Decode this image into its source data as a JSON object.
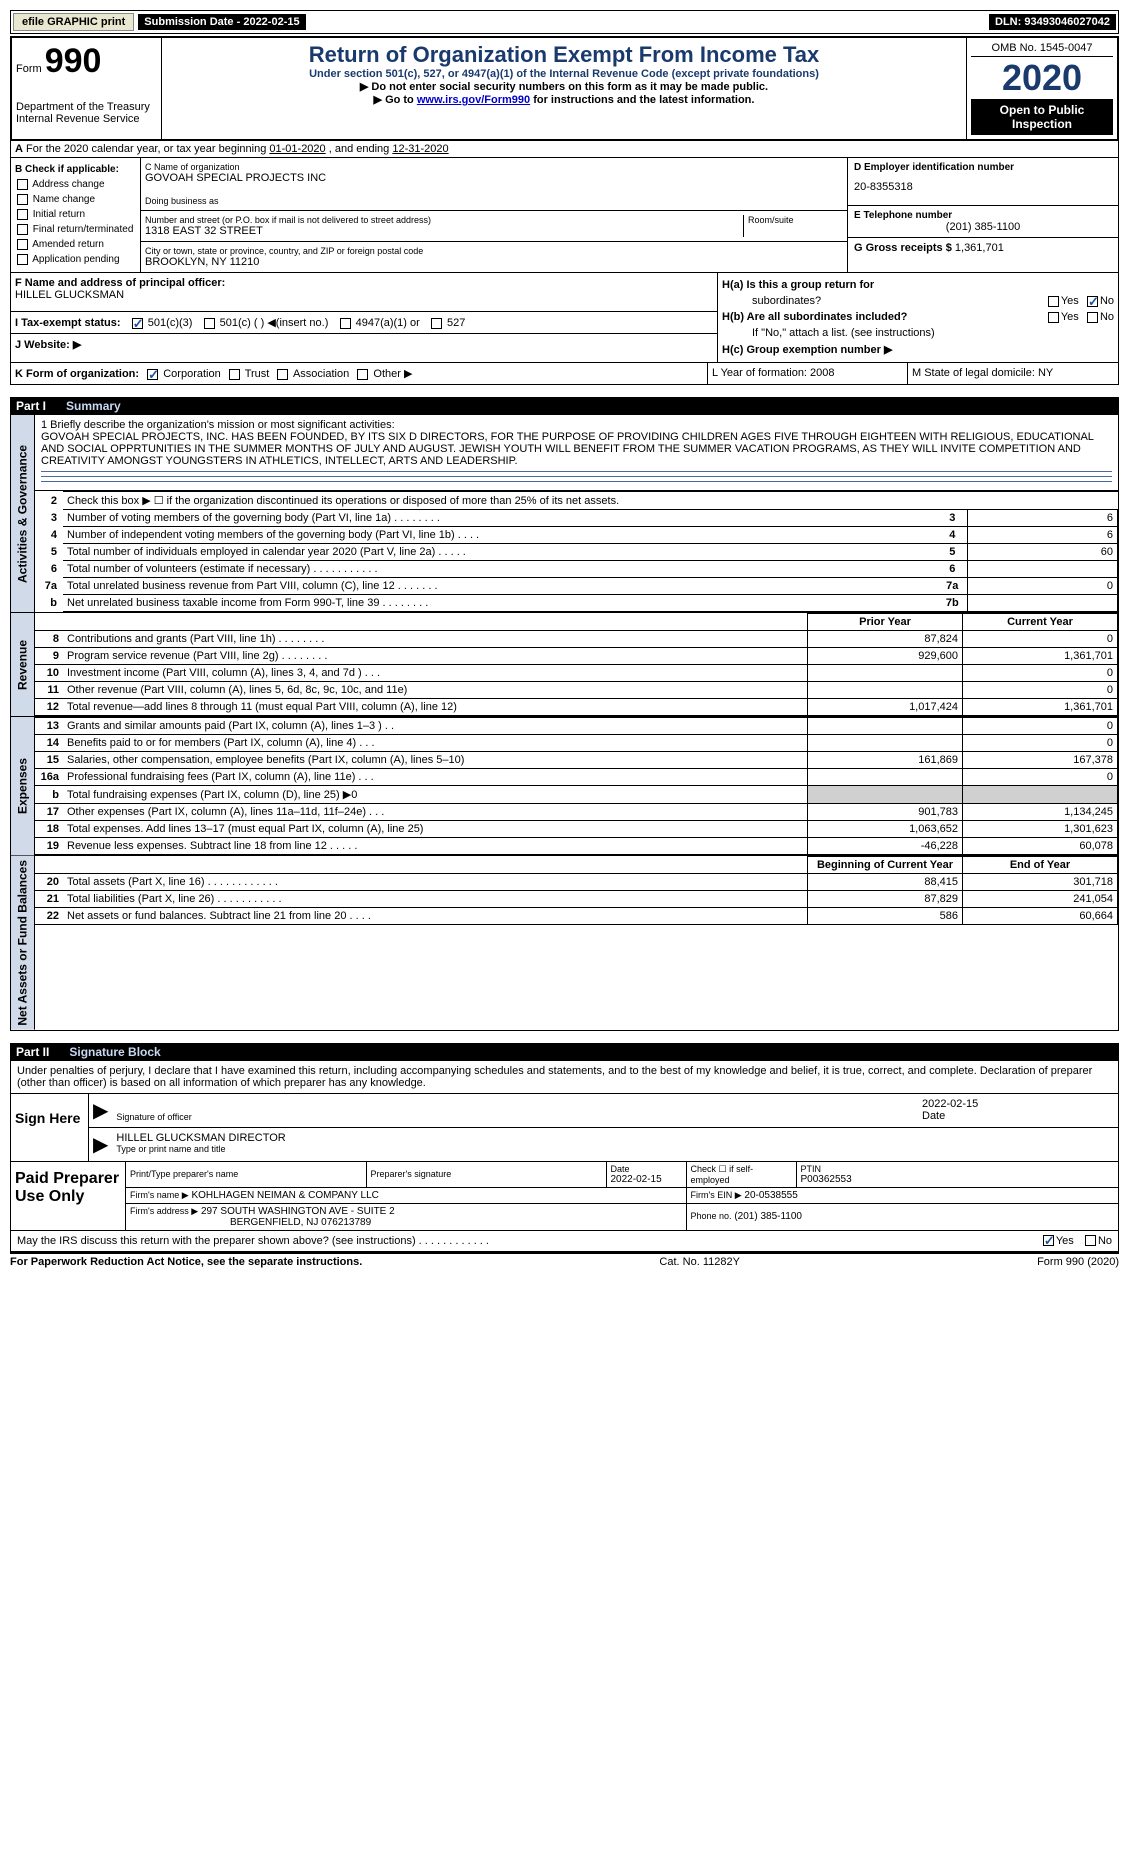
{
  "topbar": {
    "btn1": "efile GRAPHIC print",
    "sub_date_label": "Submission Date - ",
    "sub_date": "2022-02-15",
    "dln_label": "DLN: ",
    "dln": "93493046027042"
  },
  "header": {
    "form_label": "Form",
    "form_num": "990",
    "dept1": "Department of the Treasury",
    "dept2": "Internal Revenue Service",
    "title": "Return of Organization Exempt From Income Tax",
    "subtitle": "Under section 501(c), 527, or 4947(a)(1) of the Internal Revenue Code (except private foundations)",
    "instr1": "▶ Do not enter social security numbers on this form as it may be made public.",
    "instr2_pre": "▶ Go to ",
    "instr2_link": "www.irs.gov/Form990",
    "instr2_post": " for instructions and the latest information.",
    "omb": "OMB No. 1545-0047",
    "year": "2020",
    "open": "Open to Public Inspection"
  },
  "row_a": {
    "text_pre": "For the 2020 calendar year, or tax year beginning ",
    "begin": "01-01-2020",
    "mid": "  , and ending ",
    "end": "12-31-2020"
  },
  "col_b": {
    "label": "B Check if applicable:",
    "items": [
      "Address change",
      "Name change",
      "Initial return",
      "Final return/terminated",
      "Amended return",
      "Application pending"
    ]
  },
  "col_c": {
    "name_label": "C Name of organization",
    "name": "GOVOAH SPECIAL PROJECTS INC",
    "dba_label": "Doing business as",
    "dba": "",
    "addr_label": "Number and street (or P.O. box if mail is not delivered to street address)",
    "suite_label": "Room/suite",
    "addr": "1318 EAST 32 STREET",
    "city_label": "City or town, state or province, country, and ZIP or foreign postal code",
    "city": "BROOKLYN, NY  11210"
  },
  "col_d": {
    "ein_label": "D Employer identification number",
    "ein": "20-8355318",
    "tel_label": "E Telephone number",
    "tel": "(201) 385-1100",
    "gross_label": "G Gross receipts $",
    "gross": "1,361,701"
  },
  "row_f": {
    "label": "F  Name and address of principal officer:",
    "name": "HILLEL GLUCKSMAN",
    "i_label": "I  Tax-exempt status:",
    "i_opts": [
      "501(c)(3)",
      "501(c) (  ) ◀(insert no.)",
      "4947(a)(1) or",
      "527"
    ],
    "j_label": "J  Website: ▶"
  },
  "row_h": {
    "ha": "H(a)  Is this a group return for",
    "ha2": "subordinates?",
    "hb": "H(b)  Are all subordinates included?",
    "hb2": "If \"No,\" attach a list. (see instructions)",
    "hc": "H(c)  Group exemption number ▶",
    "yes": "Yes",
    "no": "No"
  },
  "row_k": {
    "k": "K Form of organization:",
    "k_opts": [
      "Corporation",
      "Trust",
      "Association",
      "Other ▶"
    ],
    "l": "L Year of formation: 2008",
    "m": "M State of legal domicile: NY"
  },
  "parts": {
    "p1": "Part I",
    "p1_title": "Summary",
    "p2": "Part II",
    "p2_title": "Signature Block"
  },
  "sides": {
    "s1": "Activities & Governance",
    "s2": "Revenue",
    "s3": "Expenses",
    "s4": "Net Assets or Fund Balances"
  },
  "mission": {
    "label": "1  Briefly describe the organization's mission or most significant activities:",
    "text": "GOVOAH SPECIAL PROJECTS, INC. HAS BEEN FOUNDED, BY ITS SIX D DIRECTORS, FOR THE PURPOSE OF PROVIDING CHILDREN AGES FIVE THROUGH EIGHTEEN WITH RELIGIOUS, EDUCATIONAL AND SOCIAL OPPRTUNITIES IN THE SUMMER MONTHS OF JULY AND AUGUST. JEWISH YOUTH WILL BENEFIT FROM THE SUMMER VACATION PROGRAMS, AS THEY WILL INVITE COMPETITION AND CREATIVITY AMONGST YOUNGSTERS IN ATHLETICS, INTELLECT, ARTS AND LEADERSHIP."
  },
  "gov_lines": [
    {
      "n": "2",
      "desc": "Check this box ▶ ☐  if the organization discontinued its operations or disposed of more than 25% of its net assets.",
      "ncol": "",
      "val": ""
    },
    {
      "n": "3",
      "desc": "Number of voting members of the governing body (Part VI, line 1a)   .    .    .    .    .    .    .    .",
      "ncol": "3",
      "val": "6"
    },
    {
      "n": "4",
      "desc": "Number of independent voting members of the governing body (Part VI, line 1b)   .    .    .    .",
      "ncol": "4",
      "val": "6"
    },
    {
      "n": "5",
      "desc": "Total number of individuals employed in calendar year 2020 (Part V, line 2a)   .    .    .    .    .",
      "ncol": "5",
      "val": "60"
    },
    {
      "n": "6",
      "desc": "Total number of volunteers (estimate if necessary)   .    .    .    .    .    .    .    .    .    .    .",
      "ncol": "6",
      "val": ""
    },
    {
      "n": "7a",
      "desc": "Total unrelated business revenue from Part VIII, column (C), line 12   .    .    .    .    .    .    .",
      "ncol": "7a",
      "val": "0"
    },
    {
      "n": "b",
      "desc": "Net unrelated business taxable income from Form 990-T, line 39   .    .    .    .    .    .    .    .",
      "ncol": "7b",
      "val": ""
    }
  ],
  "rev_head": {
    "prior": "Prior Year",
    "current": "Current Year"
  },
  "rev_lines": [
    {
      "n": "8",
      "desc": "Contributions and grants (Part VIII, line 1h)   .    .    .    .    .    .    .    .",
      "p": "87,824",
      "c": "0"
    },
    {
      "n": "9",
      "desc": "Program service revenue (Part VIII, line 2g)   .    .    .    .    .    .    .    .",
      "p": "929,600",
      "c": "1,361,701"
    },
    {
      "n": "10",
      "desc": "Investment income (Part VIII, column (A), lines 3, 4, and 7d )   .    .    .",
      "p": "",
      "c": "0"
    },
    {
      "n": "11",
      "desc": "Other revenue (Part VIII, column (A), lines 5, 6d, 8c, 9c, 10c, and 11e)",
      "p": "",
      "c": "0"
    },
    {
      "n": "12",
      "desc": "Total revenue—add lines 8 through 11 (must equal Part VIII, column (A), line 12)",
      "p": "1,017,424",
      "c": "1,361,701"
    }
  ],
  "exp_lines": [
    {
      "n": "13",
      "desc": "Grants and similar amounts paid (Part IX, column (A), lines 1–3 )  .    .",
      "p": "",
      "c": "0"
    },
    {
      "n": "14",
      "desc": "Benefits paid to or for members (Part IX, column (A), line 4)   .    .    .",
      "p": "",
      "c": "0"
    },
    {
      "n": "15",
      "desc": "Salaries, other compensation, employee benefits (Part IX, column (A), lines 5–10)",
      "p": "161,869",
      "c": "167,378"
    },
    {
      "n": "16a",
      "desc": "Professional fundraising fees (Part IX, column (A), line 11e)   .    .    .",
      "p": "",
      "c": "0"
    },
    {
      "n": "b",
      "desc": "Total fundraising expenses (Part IX, column (D), line 25) ▶0",
      "p": "grey",
      "c": "grey"
    },
    {
      "n": "17",
      "desc": "Other expenses (Part IX, column (A), lines 11a–11d, 11f–24e)   .    .    .",
      "p": "901,783",
      "c": "1,134,245"
    },
    {
      "n": "18",
      "desc": "Total expenses. Add lines 13–17 (must equal Part IX, column (A), line 25)",
      "p": "1,063,652",
      "c": "1,301,623"
    },
    {
      "n": "19",
      "desc": "Revenue less expenses. Subtract line 18 from line 12   .    .    .    .    .",
      "p": "-46,228",
      "c": "60,078"
    }
  ],
  "net_head": {
    "prior": "Beginning of Current Year",
    "current": "End of Year"
  },
  "net_lines": [
    {
      "n": "20",
      "desc": "Total assets (Part X, line 16)  .    .    .    .    .    .    .    .    .    .    .    .",
      "p": "88,415",
      "c": "301,718"
    },
    {
      "n": "21",
      "desc": "Total liabilities (Part X, line 26)   .    .    .    .    .    .    .    .    .    .    .",
      "p": "87,829",
      "c": "241,054"
    },
    {
      "n": "22",
      "desc": "Net assets or fund balances. Subtract line 21 from line 20   .    .    .    .",
      "p": "586",
      "c": "60,664"
    }
  ],
  "sig": {
    "penalties": "Under penalties of perjury, I declare that I have examined this return, including accompanying schedules and statements, and to the best of my knowledge and belief, it is true, correct, and complete. Declaration of preparer (other than officer) is based on all information of which preparer has any knowledge.",
    "sign_here": "Sign Here",
    "sig_officer_under": "Signature of officer",
    "date": "2022-02-15",
    "date_under": "Date",
    "name_title": "HILLEL GLUCKSMAN  DIRECTOR",
    "name_under": "Type or print name and title"
  },
  "prep": {
    "paid": "Paid Preparer Use Only",
    "h1": "Print/Type preparer's name",
    "h2": "Preparer's signature",
    "h3": "Date",
    "h3v": "2022-02-15",
    "h4": "Check ☐  if self-employed",
    "h5": "PTIN",
    "h5v": "P00362553",
    "firm_name_lbl": "Firm's name    ▶",
    "firm_name": "KOHLHAGEN NEIMAN & COMPANY LLC",
    "firm_ein_lbl": "Firm's EIN ▶",
    "firm_ein": "20-0538555",
    "firm_addr_lbl": "Firm's address ▶",
    "firm_addr1": "297 SOUTH WASHINGTON AVE - SUITE 2",
    "firm_addr2": "BERGENFIELD, NJ  076213789",
    "phone_lbl": "Phone no.",
    "phone": "(201) 385-1100"
  },
  "discuss": {
    "q": "May the IRS discuss this return with the preparer shown above? (see instructions)    .    .    .    .    .    .    .    .    .    .    .    .",
    "yes": "Yes",
    "no": "No"
  },
  "footer": {
    "left": "For Paperwork Reduction Act Notice, see the separate instructions.",
    "mid": "Cat. No. 11282Y",
    "right": "Form 990 (2020)"
  }
}
